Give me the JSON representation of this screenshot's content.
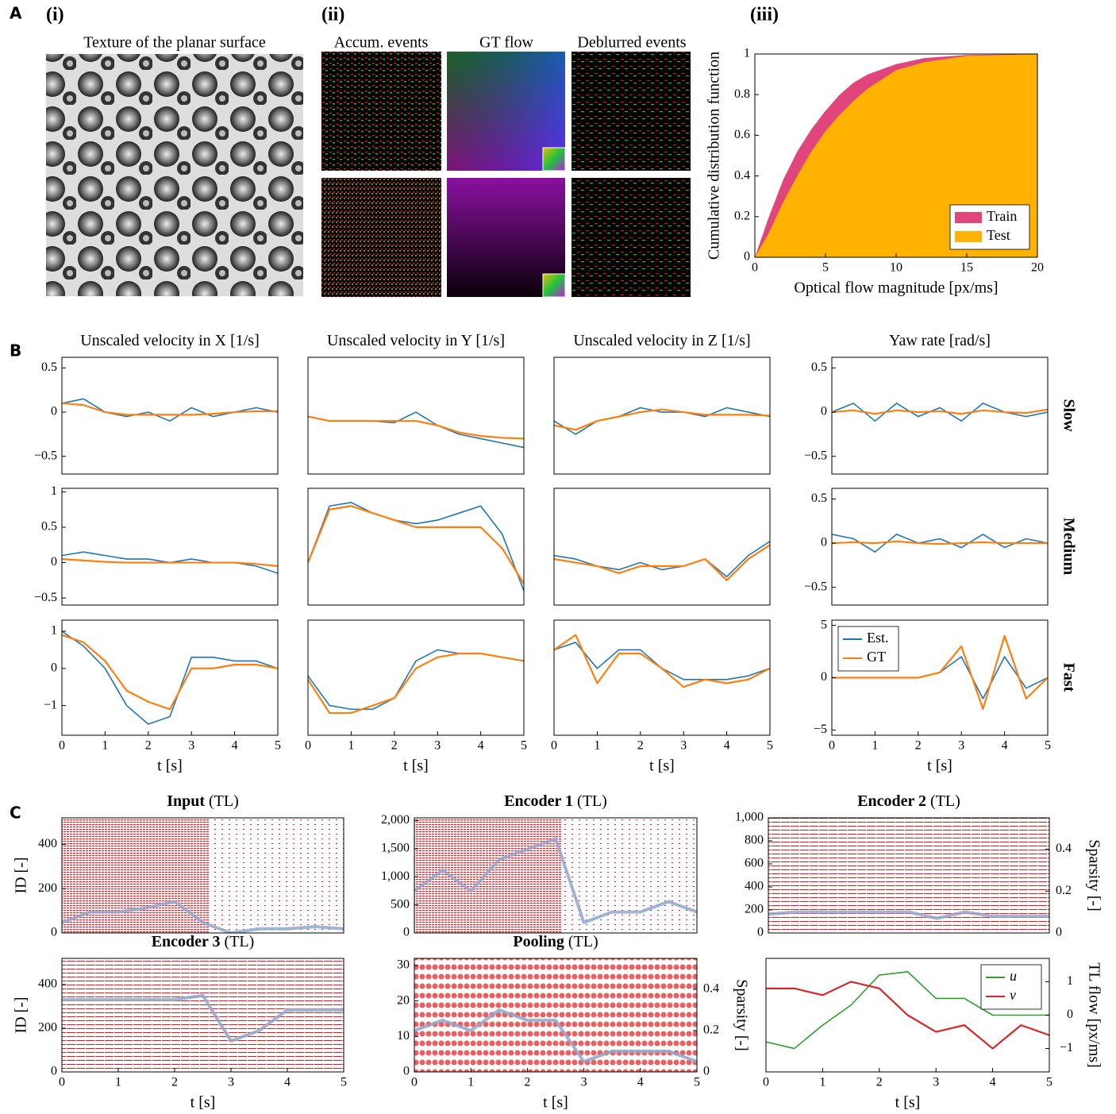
{
  "panel_labels": [
    "A",
    "B",
    "C"
  ],
  "panel_a": {
    "sublabels": [
      "(i)",
      "(ii)",
      "(iii)"
    ],
    "texture_title": "Texture of the planar surface",
    "column_titles": [
      "Accum. events",
      "GT flow",
      "Deblurred events"
    ]
  },
  "row_labels": [
    "Slow",
    "Medium",
    "Fast"
  ],
  "chart_data": [
    {
      "type": "area",
      "xlabel": "Optical flow magnitude [px/ms]",
      "ylabel": "Cumulative distribution function",
      "x": [
        0,
        1,
        2,
        3,
        4,
        5,
        6,
        7,
        8,
        10,
        12,
        15,
        20
      ],
      "xlim": [
        0,
        20
      ],
      "xticks": [
        0,
        5,
        10,
        15,
        20
      ],
      "ylim": [
        0,
        1
      ],
      "yticks": [
        0,
        0.2,
        0.4,
        0.6,
        0.8,
        1
      ],
      "legend": "lower right",
      "series": [
        {
          "name": "Train",
          "color": "#e0457b",
          "values": [
            0,
            0.2,
            0.38,
            0.52,
            0.63,
            0.72,
            0.8,
            0.86,
            0.9,
            0.95,
            0.98,
            0.995,
            1
          ]
        },
        {
          "name": "Test",
          "color": "#ffb300",
          "values": [
            0,
            0.12,
            0.27,
            0.4,
            0.52,
            0.62,
            0.7,
            0.77,
            0.83,
            0.92,
            0.96,
            0.99,
            1
          ]
        }
      ]
    },
    {
      "type": "line",
      "title": "Unscaled velocity in X [1/s]",
      "x": [
        0,
        0.5,
        1,
        1.5,
        2,
        2.5,
        3,
        3.5,
        4,
        4.5,
        5
      ],
      "xlim": [
        0,
        5
      ],
      "ylim": [
        -0.7,
        0.62
      ],
      "yticks": [
        {
          "value": -0.5,
          "label": "−0.5"
        },
        0,
        0.5
      ],
      "series": [
        {
          "color": "#1f77b4",
          "values": [
            0.1,
            0.15,
            0,
            -0.05,
            0,
            -0.1,
            0.05,
            -0.05,
            0,
            0.05,
            0
          ]
        },
        {
          "color": "#ff7f0e",
          "values": [
            0.1,
            0.08,
            0,
            -0.03,
            -0.03,
            -0.03,
            -0.03,
            -0.02,
            0,
            0.01,
            0.01
          ]
        }
      ]
    },
    {
      "type": "line",
      "title": "Unscaled velocity in Y [1/s]",
      "x": [
        0,
        0.5,
        1,
        1.5,
        2,
        2.5,
        3,
        3.5,
        4,
        4.5,
        5
      ],
      "xlim": [
        0,
        5
      ],
      "ylim": [
        -0.7,
        0.62
      ],
      "series": [
        {
          "color": "#1f77b4",
          "values": [
            -0.05,
            -0.1,
            -0.1,
            -0.1,
            -0.12,
            0,
            -0.15,
            -0.25,
            -0.3,
            -0.35,
            -0.4
          ]
        },
        {
          "color": "#ff7f0e",
          "values": [
            -0.05,
            -0.1,
            -0.1,
            -0.1,
            -0.1,
            -0.1,
            -0.15,
            -0.23,
            -0.27,
            -0.29,
            -0.3
          ]
        }
      ]
    },
    {
      "type": "line",
      "title": "Unscaled velocity in Z [1/s]",
      "x": [
        0,
        0.5,
        1,
        1.5,
        2,
        2.5,
        3,
        3.5,
        4,
        4.5,
        5
      ],
      "xlim": [
        0,
        5
      ],
      "ylim": [
        -0.7,
        0.62
      ],
      "series": [
        {
          "color": "#1f77b4",
          "values": [
            -0.1,
            -0.25,
            -0.1,
            -0.05,
            0.05,
            0,
            0,
            -0.05,
            0.05,
            0,
            -0.05
          ]
        },
        {
          "color": "#ff7f0e",
          "values": [
            -0.15,
            -0.2,
            -0.1,
            -0.05,
            0,
            0.03,
            0,
            -0.03,
            -0.03,
            -0.03,
            -0.04
          ]
        }
      ]
    },
    {
      "type": "line",
      "title": "Yaw rate [rad/s]",
      "x": [
        0,
        0.5,
        1,
        1.5,
        2,
        2.5,
        3,
        3.5,
        4,
        4.5,
        5
      ],
      "xlim": [
        0,
        5
      ],
      "ylim": [
        -0.7,
        0.62
      ],
      "yticks": [
        {
          "value": -0.5,
          "label": "−0.5"
        },
        0,
        0.5
      ],
      "series": [
        {
          "color": "#1f77b4",
          "values": [
            0,
            0.1,
            -0.1,
            0.1,
            -0.05,
            0.05,
            -0.1,
            0.1,
            0,
            -0.05,
            0
          ]
        },
        {
          "color": "#ff7f0e",
          "values": [
            0,
            0.02,
            -0.02,
            0.02,
            0,
            0.01,
            -0.02,
            0.02,
            0,
            -0.01,
            0.03
          ]
        }
      ]
    },
    {
      "type": "line",
      "x": [
        0,
        0.5,
        1,
        1.5,
        2,
        2.5,
        3,
        3.5,
        4,
        4.5,
        5
      ],
      "xlim": [
        0,
        5
      ],
      "ylim": [
        -0.6,
        1.05
      ],
      "yticks": [
        {
          "value": -0.5,
          "label": "−0.5"
        },
        0,
        0.5,
        1
      ],
      "series": [
        {
          "color": "#1f77b4",
          "values": [
            0.1,
            0.15,
            0.1,
            0.05,
            0.05,
            0,
            0.05,
            0,
            0,
            -0.05,
            -0.15
          ]
        },
        {
          "color": "#ff7f0e",
          "values": [
            0.05,
            0.03,
            0.01,
            0,
            0,
            0,
            0,
            0,
            0,
            -0.02,
            -0.05
          ]
        }
      ]
    },
    {
      "type": "line",
      "x": [
        0,
        0.5,
        1,
        1.5,
        2,
        2.5,
        3,
        3.5,
        4,
        4.5,
        5
      ],
      "xlim": [
        0,
        5
      ],
      "ylim": [
        -0.6,
        1.05
      ],
      "series": [
        {
          "color": "#1f77b4",
          "values": [
            0,
            0.8,
            0.85,
            0.7,
            0.6,
            0.55,
            0.6,
            0.7,
            0.8,
            0.4,
            -0.4
          ]
        },
        {
          "color": "#ff7f0e",
          "values": [
            0,
            0.75,
            0.8,
            0.7,
            0.6,
            0.5,
            0.5,
            0.5,
            0.5,
            0.2,
            -0.3
          ]
        }
      ]
    },
    {
      "type": "line",
      "x": [
        0,
        0.5,
        1,
        1.5,
        2,
        2.5,
        3,
        3.5,
        4,
        4.5,
        5
      ],
      "xlim": [
        0,
        5
      ],
      "ylim": [
        -0.6,
        1.05
      ],
      "series": [
        {
          "color": "#1f77b4",
          "values": [
            0.1,
            0.05,
            -0.05,
            -0.1,
            0,
            -0.1,
            -0.05,
            0.05,
            -0.2,
            0.1,
            0.3
          ]
        },
        {
          "color": "#ff7f0e",
          "values": [
            0.05,
            0,
            -0.05,
            -0.15,
            -0.05,
            -0.05,
            -0.05,
            0.05,
            -0.25,
            0.05,
            0.25
          ]
        }
      ]
    },
    {
      "type": "line",
      "x": [
        0,
        0.5,
        1,
        1.5,
        2,
        2.5,
        3,
        3.5,
        4,
        4.5,
        5
      ],
      "xlim": [
        0,
        5
      ],
      "ylim": [
        -0.7,
        0.62
      ],
      "yticks": [
        {
          "value": -0.5,
          "label": "−0.5"
        },
        0,
        0.5
      ],
      "series": [
        {
          "color": "#1f77b4",
          "values": [
            0.1,
            0.05,
            -0.1,
            0.1,
            0,
            0.05,
            -0.05,
            0.1,
            -0.05,
            0.05,
            0
          ]
        },
        {
          "color": "#ff7f0e",
          "values": [
            0,
            0.01,
            0,
            0.02,
            0,
            -0.01,
            0,
            0.01,
            0,
            0,
            0
          ]
        }
      ]
    },
    {
      "type": "line",
      "xlabel": "t [s]",
      "x": [
        0,
        0.5,
        1,
        1.5,
        2,
        2.5,
        3,
        3.5,
        4,
        4.5,
        5
      ],
      "xlim": [
        0,
        5
      ],
      "xticks": [
        0,
        1,
        2,
        3,
        4,
        5
      ],
      "ylim": [
        -1.8,
        1.3
      ],
      "yticks": [
        {
          "value": -1,
          "label": "−1"
        },
        0,
        1
      ],
      "series": [
        {
          "color": "#1f77b4",
          "values": [
            1,
            0.6,
            0,
            -1,
            -1.5,
            -1.3,
            0.3,
            0.3,
            0.2,
            0.2,
            0
          ]
        },
        {
          "color": "#ff7f0e",
          "values": [
            0.9,
            0.7,
            0.2,
            -0.6,
            -0.9,
            -1.1,
            0,
            0,
            0.1,
            0.1,
            0
          ]
        }
      ]
    },
    {
      "type": "line",
      "xlabel": "t [s]",
      "x": [
        0,
        0.5,
        1,
        1.5,
        2,
        2.5,
        3,
        3.5,
        4,
        4.5,
        5
      ],
      "xlim": [
        0,
        5
      ],
      "xticks": [
        0,
        1,
        2,
        3,
        4,
        5
      ],
      "ylim": [
        -1.8,
        1.3
      ],
      "series": [
        {
          "color": "#1f77b4",
          "values": [
            -0.2,
            -1,
            -1.1,
            -1.1,
            -0.8,
            0.2,
            0.5,
            0.4,
            0.4,
            0.3,
            0.2
          ]
        },
        {
          "color": "#ff7f0e",
          "values": [
            -0.3,
            -1.2,
            -1.2,
            -1,
            -0.8,
            0,
            0.3,
            0.4,
            0.4,
            0.3,
            0.2
          ]
        }
      ]
    },
    {
      "type": "line",
      "xlabel": "t [s]",
      "x": [
        0,
        0.5,
        1,
        1.5,
        2,
        2.5,
        3,
        3.5,
        4,
        4.5,
        5
      ],
      "xlim": [
        0,
        5
      ],
      "xticks": [
        0,
        1,
        2,
        3,
        4,
        5
      ],
      "ylim": [
        -1.8,
        1.3
      ],
      "series": [
        {
          "color": "#1f77b4",
          "values": [
            0.5,
            0.7,
            0,
            0.5,
            0.5,
            0,
            -0.3,
            -0.3,
            -0.3,
            -0.2,
            0
          ]
        },
        {
          "color": "#ff7f0e",
          "values": [
            0.5,
            0.9,
            -0.4,
            0.4,
            0.4,
            0,
            -0.5,
            -0.3,
            -0.4,
            -0.3,
            0
          ]
        }
      ]
    },
    {
      "type": "line",
      "xlabel": "t [s]",
      "x": [
        0,
        0.5,
        1,
        1.5,
        2,
        2.5,
        3,
        3.5,
        4,
        4.5,
        5
      ],
      "xlim": [
        0,
        5
      ],
      "xticks": [
        0,
        1,
        2,
        3,
        4,
        5
      ],
      "ylim": [
        -5.5,
        5.5
      ],
      "yticks": [
        {
          "value": -5,
          "label": "−5"
        },
        0,
        5
      ],
      "legend": "upper left",
      "series": [
        {
          "name": "Est.",
          "color": "#1f77b4",
          "values": [
            0,
            0,
            0,
            0,
            0,
            0.5,
            2,
            -2,
            2,
            -1,
            0
          ]
        },
        {
          "name": "GT",
          "color": "#ff7f0e",
          "values": [
            0,
            0,
            0,
            0,
            0,
            0.5,
            3,
            -3,
            4,
            -2,
            0
          ]
        }
      ]
    },
    {
      "type": "raster",
      "title": "Input",
      "subtitle": "(TL)",
      "ylabel": "ID [-]",
      "ylabel_color": "#e8191c",
      "x": [
        0,
        0.5,
        1,
        1.5,
        2,
        2.5,
        3,
        3.5,
        4,
        4.5,
        5
      ],
      "xlim": [
        0,
        5
      ],
      "ylim": [
        0,
        520
      ],
      "yticks": [
        0,
        200,
        400
      ],
      "y2lim": [
        0,
        0.55
      ],
      "series": [
        {
          "color": "#8fa8cc",
          "axis": "y2",
          "values": [
            0.05,
            0.1,
            0.1,
            0.12,
            0.15,
            0.05,
            0,
            0.02,
            0.02,
            0.03,
            0.02
          ]
        }
      ]
    },
    {
      "type": "raster",
      "title": "Encoder 1",
      "subtitle": "(TL)",
      "x": [
        0,
        0.5,
        1,
        1.5,
        2,
        2.5,
        3,
        3.5,
        4,
        4.5,
        5
      ],
      "xlim": [
        0,
        5
      ],
      "ylim": [
        0,
        2050
      ],
      "yticks": [
        0,
        500,
        {
          "value": 1000,
          "label": "1,000"
        },
        {
          "value": 1500,
          "label": "1,500"
        },
        {
          "value": 2000,
          "label": "2,000"
        }
      ],
      "y2lim": [
        0,
        0.55
      ],
      "series": [
        {
          "color": "#8fa8cc",
          "axis": "y2",
          "values": [
            0.2,
            0.3,
            0.2,
            0.35,
            0.4,
            0.45,
            0.05,
            0.1,
            0.1,
            0.15,
            0.1
          ]
        }
      ]
    },
    {
      "type": "raster",
      "title": "Encoder 2",
      "subtitle": "(TL)",
      "y2label": "Sparsity [-]",
      "y2label_color": "#7fa3c8",
      "x": [
        0,
        0.5,
        1,
        1.5,
        2,
        2.5,
        3,
        3.5,
        4,
        4.5,
        5
      ],
      "xlim": [
        0,
        5
      ],
      "ylim": [
        0,
        1000
      ],
      "yticks": [
        0,
        200,
        400,
        600,
        800,
        {
          "value": 1000,
          "label": "1,000"
        }
      ],
      "y2lim": [
        0,
        0.55
      ],
      "y2ticks": [
        0,
        0.2,
        0.4
      ],
      "series": [
        {
          "color": "#8fa8cc",
          "axis": "y2",
          "values": [
            0.09,
            0.1,
            0.1,
            0.1,
            0.1,
            0.1,
            0.07,
            0.1,
            0.08,
            0.08,
            0.08
          ]
        }
      ]
    },
    {
      "type": "raster",
      "title": "Encoder 3",
      "subtitle": "(TL)",
      "ylabel": "ID [-]",
      "ylabel_color": "#e8191c",
      "xlabel": "t [s]",
      "x": [
        0,
        0.5,
        1,
        1.5,
        2,
        2.5,
        3,
        3.5,
        4,
        4.5,
        5
      ],
      "xlim": [
        0,
        5
      ],
      "xticks": [
        0,
        1,
        2,
        3,
        4,
        5
      ],
      "ylim": [
        0,
        520
      ],
      "yticks": [
        0,
        200,
        400
      ],
      "y2lim": [
        0,
        0.55
      ],
      "series": [
        {
          "color": "#8fa8cc",
          "axis": "y2",
          "values": [
            0.35,
            0.35,
            0.35,
            0.35,
            0.35,
            0.37,
            0.15,
            0.2,
            0.3,
            0.3,
            0.3
          ]
        }
      ]
    },
    {
      "type": "raster",
      "title": "Pooling",
      "subtitle": "(TL)",
      "y2label": "Sparsity [-]",
      "y2label_color": "#7fa3c8",
      "xlabel": "t [s]",
      "x": [
        0,
        0.5,
        1,
        1.5,
        2,
        2.5,
        3,
        3.5,
        4,
        4.5,
        5
      ],
      "xlim": [
        0,
        5
      ],
      "xticks": [
        0,
        1,
        2,
        3,
        4,
        5
      ],
      "ylim": [
        0,
        32
      ],
      "yticks": [
        0,
        10,
        20,
        30
      ],
      "y2lim": [
        0,
        0.55
      ],
      "y2ticks": [
        0,
        0.2,
        0.4
      ],
      "series": [
        {
          "color": "#8fa8cc",
          "axis": "y2",
          "values": [
            0.2,
            0.25,
            0.2,
            0.3,
            0.25,
            0.25,
            0.05,
            0.1,
            0.1,
            0.1,
            0.05
          ]
        }
      ]
    },
    {
      "type": "line",
      "xlabel": "t [s]",
      "ylabel": "TL flow [px/ms]",
      "yaxis": "right",
      "legend": "upper right",
      "x": [
        0,
        0.5,
        1,
        1.5,
        2,
        2.5,
        3,
        3.5,
        4,
        4.5,
        5
      ],
      "xlim": [
        0,
        5
      ],
      "xticks": [
        0,
        1,
        2,
        3,
        4,
        5
      ],
      "ylim": [
        -1.7,
        1.7
      ],
      "yticks": [
        {
          "value": -1,
          "label": "−1"
        },
        0,
        1
      ],
      "series": [
        {
          "name": "u",
          "color": "#2ca02c",
          "values": [
            -0.8,
            -1,
            -0.3,
            0.3,
            1.2,
            1.3,
            0.5,
            0.5,
            0,
            0,
            0
          ]
        },
        {
          "name": "v",
          "color": "#d62728",
          "values": [
            0.8,
            0.8,
            0.6,
            1,
            0.8,
            0,
            -0.5,
            -0.3,
            -1,
            -0.3,
            -0.6
          ]
        }
      ]
    }
  ]
}
